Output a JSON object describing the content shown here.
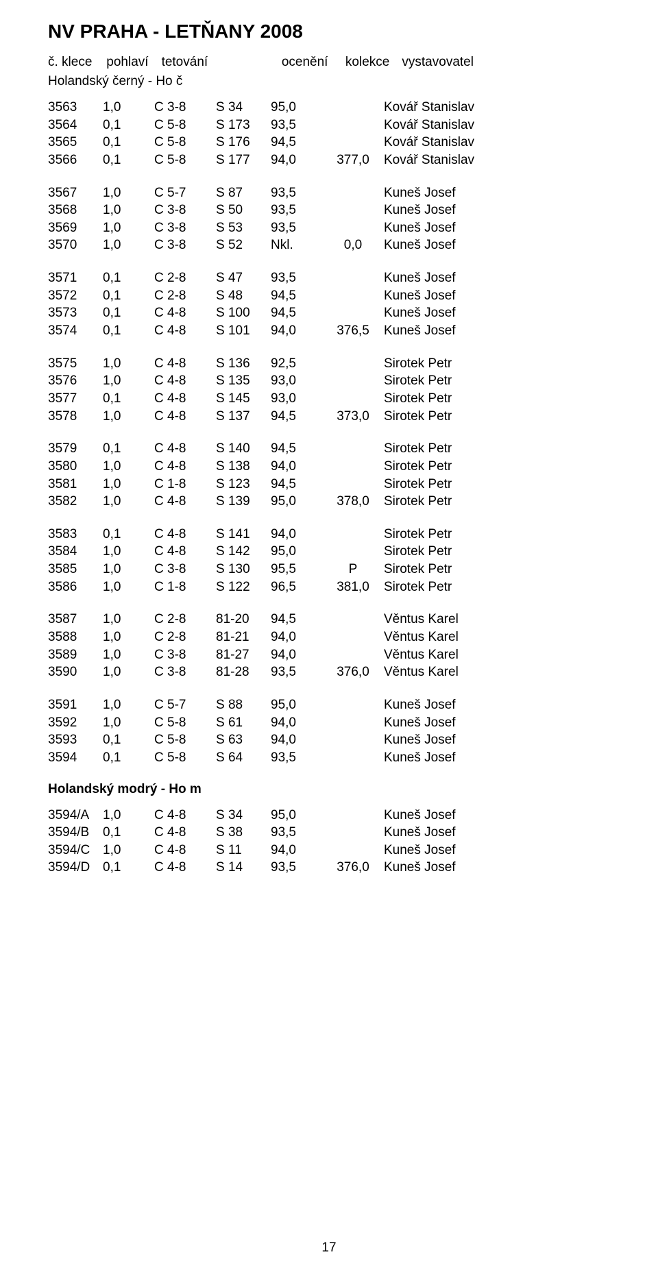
{
  "title": "NV PRAHA - LETŇANY 2008",
  "header": {
    "klece": "č. klece",
    "pohlavi": "pohlaví",
    "tetovani": "tetování",
    "oceneni": "ocenění",
    "kolekce": "kolekce",
    "vystavovatel": "vystavovatel"
  },
  "section1_label": "Holandský černý - Ho č",
  "section2_label": "Holandský modrý - Ho m",
  "page_number": "17",
  "blocks": [
    [
      {
        "klece": "3563",
        "pohlavi": "1,0",
        "tet": "C 3-8",
        "sub": "S 34",
        "ocen": "95,0",
        "kolekce": "",
        "vyst": "Kovář Stanislav"
      },
      {
        "klece": "3564",
        "pohlavi": "0,1",
        "tet": "C 5-8",
        "sub": "S 173",
        "ocen": "93,5",
        "kolekce": "",
        "vyst": "Kovář Stanislav"
      },
      {
        "klece": "3565",
        "pohlavi": "0,1",
        "tet": "C 5-8",
        "sub": "S 176",
        "ocen": "94,5",
        "kolekce": "",
        "vyst": "Kovář Stanislav"
      },
      {
        "klece": "3566",
        "pohlavi": "0,1",
        "tet": "C 5-8",
        "sub": "S 177",
        "ocen": "94,0",
        "kolekce": "377,0",
        "vyst": "Kovář Stanislav"
      }
    ],
    [
      {
        "klece": "3567",
        "pohlavi": "1,0",
        "tet": "C 5-7",
        "sub": "S 87",
        "ocen": "93,5",
        "kolekce": "",
        "vyst": "Kuneš Josef"
      },
      {
        "klece": "3568",
        "pohlavi": "1,0",
        "tet": "C 3-8",
        "sub": "S 50",
        "ocen": "93,5",
        "kolekce": "",
        "vyst": "Kuneš Josef"
      },
      {
        "klece": "3569",
        "pohlavi": "1,0",
        "tet": "C 3-8",
        "sub": "S 53",
        "ocen": "93,5",
        "kolekce": "",
        "vyst": "Kuneš Josef"
      },
      {
        "klece": "3570",
        "pohlavi": "1,0",
        "tet": "C 3-8",
        "sub": "S 52",
        "ocen": "Nkl.",
        "kolekce": "0,0",
        "vyst": "Kuneš Josef"
      }
    ],
    [
      {
        "klece": "3571",
        "pohlavi": "0,1",
        "tet": "C 2-8",
        "sub": "S 47",
        "ocen": "93,5",
        "kolekce": "",
        "vyst": "Kuneš Josef"
      },
      {
        "klece": "3572",
        "pohlavi": "0,1",
        "tet": "C 2-8",
        "sub": "S 48",
        "ocen": "94,5",
        "kolekce": "",
        "vyst": "Kuneš Josef"
      },
      {
        "klece": "3573",
        "pohlavi": "0,1",
        "tet": "C 4-8",
        "sub": "S 100",
        "ocen": "94,5",
        "kolekce": "",
        "vyst": "Kuneš Josef"
      },
      {
        "klece": "3574",
        "pohlavi": "0,1",
        "tet": "C 4-8",
        "sub": "S 101",
        "ocen": "94,0",
        "kolekce": "376,5",
        "vyst": "Kuneš Josef"
      }
    ],
    [
      {
        "klece": "3575",
        "pohlavi": "1,0",
        "tet": "C 4-8",
        "sub": "S 136",
        "ocen": "92,5",
        "kolekce": "",
        "vyst": "Sirotek Petr"
      },
      {
        "klece": "3576",
        "pohlavi": "1,0",
        "tet": "C 4-8",
        "sub": "S 135",
        "ocen": "93,0",
        "kolekce": "",
        "vyst": "Sirotek Petr"
      },
      {
        "klece": "3577",
        "pohlavi": "0,1",
        "tet": "C 4-8",
        "sub": "S 145",
        "ocen": "93,0",
        "kolekce": "",
        "vyst": "Sirotek Petr"
      },
      {
        "klece": "3578",
        "pohlavi": "1,0",
        "tet": "C 4-8",
        "sub": "S 137",
        "ocen": "94,5",
        "kolekce": "373,0",
        "vyst": "Sirotek Petr"
      }
    ],
    [
      {
        "klece": "3579",
        "pohlavi": "0,1",
        "tet": "C 4-8",
        "sub": "S 140",
        "ocen": "94,5",
        "kolekce": "",
        "vyst": "Sirotek Petr"
      },
      {
        "klece": "3580",
        "pohlavi": "1,0",
        "tet": "C 4-8",
        "sub": "S 138",
        "ocen": "94,0",
        "kolekce": "",
        "vyst": "Sirotek Petr"
      },
      {
        "klece": "3581",
        "pohlavi": "1,0",
        "tet": "C 1-8",
        "sub": "S 123",
        "ocen": "94,5",
        "kolekce": "",
        "vyst": "Sirotek Petr"
      },
      {
        "klece": "3582",
        "pohlavi": "1,0",
        "tet": "C 4-8",
        "sub": "S 139",
        "ocen": "95,0",
        "kolekce": "378,0",
        "vyst": "Sirotek Petr"
      }
    ],
    [
      {
        "klece": "3583",
        "pohlavi": "0,1",
        "tet": "C 4-8",
        "sub": "S 141",
        "ocen": "94,0",
        "kolekce": "",
        "vyst": "Sirotek Petr"
      },
      {
        "klece": "3584",
        "pohlavi": "1,0",
        "tet": "C 4-8",
        "sub": "S 142",
        "ocen": "95,0",
        "kolekce": "",
        "vyst": "Sirotek Petr"
      },
      {
        "klece": "3585",
        "pohlavi": "1,0",
        "tet": "C 3-8",
        "sub": "S 130",
        "ocen": "95,5",
        "kolekce": "P",
        "vyst": "Sirotek Petr"
      },
      {
        "klece": "3586",
        "pohlavi": "1,0",
        "tet": "C 1-8",
        "sub": "S 122",
        "ocen": "96,5",
        "kolekce": "381,0",
        "vyst": "Sirotek Petr"
      }
    ],
    [
      {
        "klece": "3587",
        "pohlavi": "1,0",
        "tet": "C 2-8",
        "sub": "81-20",
        "ocen": "94,5",
        "kolekce": "",
        "vyst": "Věntus Karel"
      },
      {
        "klece": "3588",
        "pohlavi": "1,0",
        "tet": "C 2-8",
        "sub": "81-21",
        "ocen": "94,0",
        "kolekce": "",
        "vyst": "Věntus Karel"
      },
      {
        "klece": "3589",
        "pohlavi": "1,0",
        "tet": "C 3-8",
        "sub": "81-27",
        "ocen": "94,0",
        "kolekce": "",
        "vyst": "Věntus Karel"
      },
      {
        "klece": "3590",
        "pohlavi": "1,0",
        "tet": "C 3-8",
        "sub": "81-28",
        "ocen": "93,5",
        "kolekce": "376,0",
        "vyst": "Věntus Karel"
      }
    ],
    [
      {
        "klece": "3591",
        "pohlavi": "1,0",
        "tet": "C 5-7",
        "sub": "S 88",
        "ocen": "95,0",
        "kolekce": "",
        "vyst": "Kuneš Josef"
      },
      {
        "klece": "3592",
        "pohlavi": "1,0",
        "tet": "C 5-8",
        "sub": "S 61",
        "ocen": "94,0",
        "kolekce": "",
        "vyst": "Kuneš Josef"
      },
      {
        "klece": "3593",
        "pohlavi": "0,1",
        "tet": "C 5-8",
        "sub": "S 63",
        "ocen": "94,0",
        "kolekce": "",
        "vyst": "Kuneš Josef"
      },
      {
        "klece": "3594",
        "pohlavi": "0,1",
        "tet": "C 5-8",
        "sub": "S 64",
        "ocen": "93,5",
        "kolekce": "",
        "vyst": "Kuneš Josef"
      }
    ]
  ],
  "blocks2": [
    [
      {
        "klece": "3594/A",
        "pohlavi": "1,0",
        "tet": "C 4-8",
        "sub": "S 34",
        "ocen": "95,0",
        "kolekce": "",
        "vyst": "Kuneš Josef"
      },
      {
        "klece": "3594/B",
        "pohlavi": "0,1",
        "tet": "C 4-8",
        "sub": "S 38",
        "ocen": "93,5",
        "kolekce": "",
        "vyst": "Kuneš Josef"
      },
      {
        "klece": "3594/C",
        "pohlavi": "1,0",
        "tet": "C 4-8",
        "sub": "S 11",
        "ocen": "94,0",
        "kolekce": "",
        "vyst": "Kuneš Josef"
      },
      {
        "klece": "3594/D",
        "pohlavi": "0,1",
        "tet": "C 4-8",
        "sub": "S 14",
        "ocen": "93,5",
        "kolekce": "376,0",
        "vyst": "Kuneš Josef"
      }
    ]
  ]
}
